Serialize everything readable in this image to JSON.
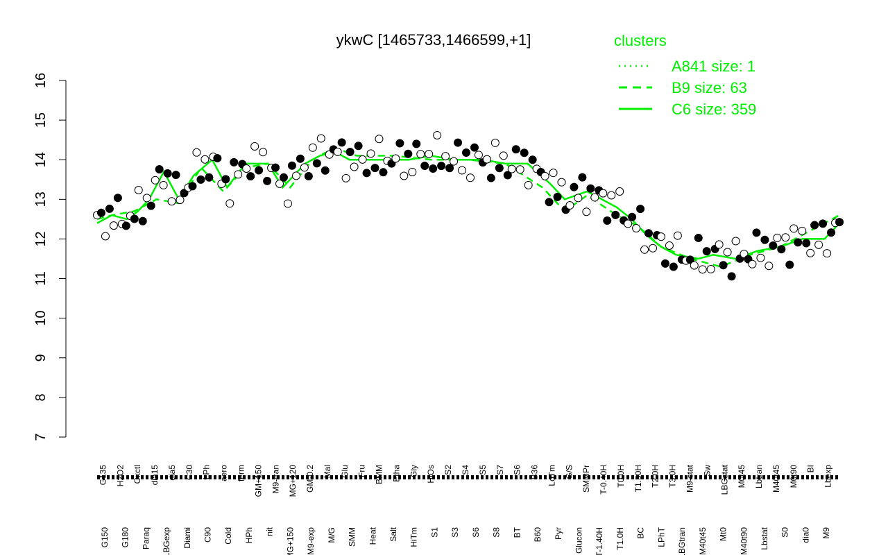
{
  "chart_data": {
    "type": "line",
    "title": "ykwC [1465733,1466599,+1]",
    "ylim": [
      7,
      16
    ],
    "yticks": [
      7,
      8,
      9,
      10,
      11,
      12,
      13,
      14,
      15,
      16
    ],
    "grid": false,
    "legend": {
      "title": "clusters",
      "placement": "top-right",
      "entries": [
        {
          "label": "A841 size: 1",
          "style": "dotted"
        },
        {
          "label": "B9 size: 63",
          "style": "dashed"
        },
        {
          "label": "C6 size: 359",
          "style": "solid"
        }
      ]
    },
    "colors": {
      "series": "#00ee00",
      "axis": "#000000",
      "point_stroke": "#000000",
      "point_filled": "#000000",
      "point_open": "#ffffff"
    },
    "x_labels_top": [
      "G135",
      "H2O2",
      "Oxctl",
      "dia15",
      "dia5",
      "C30",
      "LPh",
      "aero",
      "ferm",
      "GM+150",
      "M9-tran",
      "MG+120",
      "GM-0.2",
      "Mal",
      "Glu",
      "Fru",
      "BMM",
      "Etha",
      "Gly",
      "HiOs",
      "S2",
      "S4",
      "S5",
      "S7",
      "S6",
      "B36",
      "LoTm",
      "G/S",
      "SMMPr",
      "T-0.40H",
      "T0.0H",
      "T1.30H",
      "T2.0H",
      "T3.0H",
      "M9-stat",
      "Sw",
      "LBGstat",
      "M0t45",
      "Lbtran",
      "M40t45",
      "M0t90",
      "BI",
      "Lbexp"
    ],
    "x_labels_bottom": [
      "G150",
      "G180",
      "Paraq",
      "LBGexp",
      "Diami",
      "C90",
      "Cold",
      "HPh",
      "nit",
      "MG+150",
      "M9-exp",
      "M/G",
      "SMM",
      "Heat",
      "Salt",
      "HiTm",
      "S1",
      "S3",
      "S6",
      "S8",
      "BT",
      "B60",
      "Pyr",
      "Glucon",
      "T-1.40H",
      "T1.0H",
      "BC",
      "LPhT",
      "LBGtran",
      "M40t45",
      "Mt0",
      "M40t90",
      "Lbstat",
      "S0",
      "dia0",
      "M9"
    ],
    "series": {
      "C6": [
        [
          0.0,
          12.4
        ],
        [
          0.02,
          12.6
        ],
        [
          0.04,
          12.5
        ],
        [
          0.055,
          12.7
        ],
        [
          0.07,
          13.0
        ],
        [
          0.09,
          13.7
        ],
        [
          0.11,
          13.0
        ],
        [
          0.13,
          13.6
        ],
        [
          0.155,
          14.0
        ],
        [
          0.175,
          13.3
        ],
        [
          0.2,
          13.9
        ],
        [
          0.23,
          13.9
        ],
        [
          0.25,
          13.3
        ],
        [
          0.28,
          13.9
        ],
        [
          0.3,
          14.1
        ],
        [
          0.32,
          14.2
        ],
        [
          0.34,
          14.0
        ],
        [
          0.38,
          14.0
        ],
        [
          0.42,
          14.0
        ],
        [
          0.45,
          14.1
        ],
        [
          0.48,
          14.0
        ],
        [
          0.52,
          14.0
        ],
        [
          0.55,
          13.9
        ],
        [
          0.58,
          13.9
        ],
        [
          0.61,
          13.4
        ],
        [
          0.63,
          13.0
        ],
        [
          0.66,
          13.2
        ],
        [
          0.7,
          12.8
        ],
        [
          0.72,
          12.5
        ],
        [
          0.74,
          12.1
        ],
        [
          0.76,
          11.8
        ],
        [
          0.78,
          11.6
        ],
        [
          0.81,
          11.5
        ],
        [
          0.83,
          11.6
        ],
        [
          0.86,
          11.5
        ],
        [
          0.89,
          11.7
        ],
        [
          0.92,
          11.8
        ],
        [
          0.95,
          12.0
        ],
        [
          0.98,
          12.0
        ],
        [
          1.0,
          12.4
        ]
      ],
      "B9": [
        [
          0.0,
          12.5
        ],
        [
          0.02,
          12.6
        ],
        [
          0.05,
          12.7
        ],
        [
          0.08,
          13.0
        ],
        [
          0.11,
          12.9
        ],
        [
          0.14,
          13.8
        ],
        [
          0.17,
          13.2
        ],
        [
          0.2,
          13.8
        ],
        [
          0.23,
          13.9
        ],
        [
          0.26,
          13.3
        ],
        [
          0.29,
          14.0
        ],
        [
          0.32,
          14.3
        ],
        [
          0.35,
          14.1
        ],
        [
          0.4,
          14.1
        ],
        [
          0.45,
          14.0
        ],
        [
          0.5,
          14.0
        ],
        [
          0.55,
          13.9
        ],
        [
          0.6,
          13.3
        ],
        [
          0.63,
          12.7
        ],
        [
          0.66,
          13.1
        ],
        [
          0.7,
          12.6
        ],
        [
          0.73,
          12.3
        ],
        [
          0.76,
          11.8
        ],
        [
          0.8,
          11.5
        ],
        [
          0.84,
          11.3
        ],
        [
          0.88,
          11.6
        ],
        [
          0.92,
          11.8
        ],
        [
          0.96,
          12.2
        ],
        [
          1.0,
          12.6
        ]
      ]
    }
  }
}
